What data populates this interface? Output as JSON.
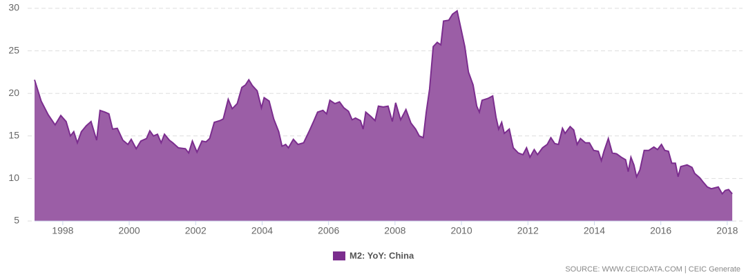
{
  "chart_data": {
    "type": "area",
    "x": [
      1997.15,
      1997.35,
      1997.56,
      1997.77,
      1997.94,
      1998.1,
      1998.23,
      1998.33,
      1998.44,
      1998.56,
      1998.71,
      1998.85,
      1999.02,
      1999.12,
      1999.27,
      1999.39,
      1999.5,
      1999.64,
      1999.81,
      1999.96,
      2000.06,
      2000.21,
      2000.35,
      2000.52,
      2000.62,
      2000.73,
      2000.85,
      2000.96,
      2001.06,
      2001.21,
      2001.31,
      2001.48,
      2001.69,
      2001.79,
      2001.9,
      2002.04,
      2002.19,
      2002.31,
      2002.42,
      2002.56,
      2002.73,
      2002.83,
      2002.98,
      2003.1,
      2003.25,
      2003.39,
      2003.5,
      2003.6,
      2003.71,
      2003.85,
      2003.98,
      2004.06,
      2004.21,
      2004.35,
      2004.5,
      2004.6,
      2004.71,
      2004.79,
      2004.94,
      2005.08,
      2005.25,
      2005.41,
      2005.56,
      2005.67,
      2005.83,
      2005.94,
      2006.04,
      2006.19,
      2006.33,
      2006.46,
      2006.6,
      2006.71,
      2006.81,
      2006.96,
      2007.04,
      2007.12,
      2007.27,
      2007.4,
      2007.5,
      2007.65,
      2007.79,
      2007.92,
      2008.02,
      2008.17,
      2008.33,
      2008.48,
      2008.62,
      2008.73,
      2008.85,
      2008.94,
      2009.04,
      2009.15,
      2009.27,
      2009.38,
      2009.46,
      2009.62,
      2009.73,
      2009.87,
      2009.98,
      2010.1,
      2010.21,
      2010.35,
      2010.46,
      2010.54,
      2010.62,
      2010.79,
      2010.94,
      2011.04,
      2011.12,
      2011.21,
      2011.29,
      2011.44,
      2011.56,
      2011.71,
      2011.85,
      2011.96,
      2012.06,
      2012.19,
      2012.29,
      2012.44,
      2012.58,
      2012.69,
      2012.81,
      2012.92,
      2013.04,
      2013.12,
      2013.27,
      2013.38,
      2013.48,
      2013.58,
      2013.73,
      2013.85,
      2013.98,
      2014.12,
      2014.21,
      2014.29,
      2014.42,
      2014.54,
      2014.67,
      2014.81,
      2014.94,
      2015.02,
      2015.1,
      2015.19,
      2015.27,
      2015.37,
      2015.5,
      2015.64,
      2015.79,
      2015.9,
      2016.02,
      2016.12,
      2016.23,
      2016.33,
      2016.44,
      2016.52,
      2016.6,
      2016.79,
      2016.94,
      2017.02,
      2017.17,
      2017.27,
      2017.4,
      2017.52,
      2017.62,
      2017.73,
      2017.85,
      2017.94,
      2018.04,
      2018.15
    ],
    "series": [
      {
        "name": "M2: YoY: China",
        "color": "#7b2d8e",
        "fill": "#9b5ea6",
        "values": [
          21.6,
          19.1,
          17.5,
          16.3,
          17.4,
          16.7,
          15.0,
          15.5,
          14.2,
          15.5,
          16.2,
          16.7,
          14.5,
          18.0,
          17.8,
          17.6,
          15.8,
          15.9,
          14.5,
          14.0,
          14.6,
          13.5,
          14.4,
          14.7,
          15.6,
          15.0,
          15.2,
          14.2,
          15.2,
          14.5,
          14.2,
          13.6,
          13.5,
          13.0,
          14.4,
          13.1,
          14.4,
          14.3,
          14.7,
          16.6,
          16.8,
          17.0,
          19.3,
          18.2,
          18.8,
          20.7,
          21.0,
          21.6,
          20.9,
          20.3,
          18.3,
          19.5,
          19.1,
          17.0,
          15.5,
          13.8,
          14.0,
          13.6,
          14.6,
          14.0,
          14.2,
          15.5,
          16.8,
          17.8,
          18.0,
          17.6,
          19.2,
          18.8,
          19.0,
          18.3,
          17.9,
          16.9,
          17.1,
          16.8,
          15.8,
          17.8,
          17.3,
          16.8,
          18.5,
          18.4,
          18.5,
          16.7,
          18.9,
          16.9,
          18.1,
          16.5,
          15.8,
          15.0,
          14.8,
          17.8,
          20.5,
          25.5,
          26.0,
          25.7,
          28.5,
          28.6,
          29.3,
          29.7,
          27.7,
          25.5,
          22.5,
          21.0,
          18.5,
          17.8,
          19.2,
          19.4,
          19.7,
          17.2,
          15.8,
          16.6,
          15.3,
          15.8,
          13.6,
          13.0,
          12.8,
          13.6,
          12.5,
          13.4,
          12.8,
          13.6,
          14.0,
          14.8,
          14.1,
          14.0,
          15.9,
          15.3,
          16.1,
          15.7,
          14.0,
          14.7,
          14.2,
          14.2,
          13.3,
          13.2,
          12.1,
          13.2,
          14.7,
          13.0,
          12.9,
          12.5,
          12.2,
          10.8,
          12.5,
          11.6,
          10.2,
          11.0,
          13.3,
          13.3,
          13.7,
          13.4,
          14.0,
          13.3,
          13.2,
          11.8,
          11.8,
          10.2,
          11.4,
          11.6,
          11.3,
          10.6,
          10.1,
          9.6,
          9.0,
          8.8,
          8.9,
          9.0,
          8.2,
          8.6,
          8.7,
          8.2
        ]
      }
    ],
    "xlim": [
      1997.15,
      2018.19
    ],
    "xticks": [
      1998,
      2000,
      2002,
      2004,
      2006,
      2008,
      2010,
      2012,
      2014,
      2016,
      2018
    ],
    "ylim": [
      5,
      30
    ],
    "yticks": [
      5,
      10,
      15,
      20,
      25,
      30
    ],
    "grid": true,
    "source": "SOURCE: WWW.CEICDATA.COM | CEIC Generate"
  }
}
